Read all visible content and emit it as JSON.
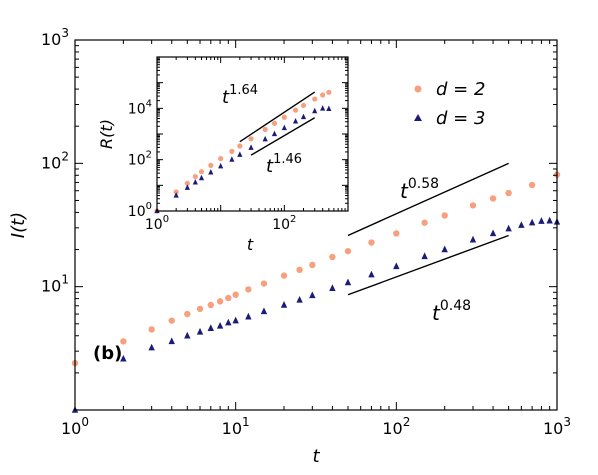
{
  "chart_data": [
    {
      "type": "scatter",
      "panel_label": "(b)",
      "xlabel": "t",
      "ylabel": "I(t)",
      "xscale": "log",
      "yscale": "log",
      "xlim": [
        1,
        1000
      ],
      "ylim": [
        1,
        1000
      ],
      "x_ticks": [
        {
          "base": "10",
          "exp": "0",
          "value": 1
        },
        {
          "base": "10",
          "exp": "1",
          "value": 10
        },
        {
          "base": "10",
          "exp": "2",
          "value": 100
        },
        {
          "base": "10",
          "exp": "3",
          "value": 1000
        }
      ],
      "y_ticks": [
        {
          "base": "10",
          "exp": "1",
          "value": 10
        },
        {
          "base": "10",
          "exp": "2",
          "value": 100
        },
        {
          "base": "10",
          "exp": "3",
          "value": 1000
        }
      ],
      "legend": {
        "placement": "upper-right"
      },
      "series": [
        {
          "name": "d = 2",
          "color": "#f7a07f",
          "marker": "circle",
          "points": [
            [
              1,
              2.4
            ],
            [
              2,
              3.6
            ],
            [
              3,
              4.5
            ],
            [
              4,
              5.3
            ],
            [
              5,
              6.0
            ],
            [
              6,
              6.6
            ],
            [
              7,
              7.1
            ],
            [
              8,
              7.6
            ],
            [
              9,
              8.1
            ],
            [
              10,
              8.6
            ],
            [
              12,
              9.5
            ],
            [
              15,
              10.6
            ],
            [
              20,
              12.3
            ],
            [
              25,
              13.7
            ],
            [
              30,
              15.0
            ],
            [
              40,
              17.4
            ],
            [
              50,
              19.4
            ],
            [
              70,
              22.8
            ],
            [
              100,
              27.0
            ],
            [
              150,
              33.0
            ],
            [
              200,
              37.8
            ],
            [
              300,
              45.6
            ],
            [
              400,
              51.9
            ],
            [
              500,
              57.4
            ],
            [
              700,
              66.7
            ],
            [
              1000,
              81.0
            ]
          ]
        },
        {
          "name": "d = 3",
          "color": "#1c1c78",
          "marker": "triangle",
          "points": [
            [
              1,
              1.0
            ],
            [
              2,
              2.6
            ],
            [
              3,
              3.2
            ],
            [
              4,
              3.6
            ],
            [
              5,
              4.0
            ],
            [
              6,
              4.3
            ],
            [
              7,
              4.6
            ],
            [
              8,
              4.8
            ],
            [
              9,
              5.1
            ],
            [
              10,
              5.3
            ],
            [
              12,
              5.7
            ],
            [
              15,
              6.3
            ],
            [
              20,
              7.1
            ],
            [
              25,
              7.8
            ],
            [
              30,
              8.5
            ],
            [
              40,
              9.7
            ],
            [
              50,
              10.8
            ],
            [
              70,
              12.5
            ],
            [
              100,
              14.6
            ],
            [
              150,
              17.6
            ],
            [
              200,
              20.0
            ],
            [
              300,
              24.0
            ],
            [
              400,
              27.0
            ],
            [
              500,
              29.5
            ],
            [
              600,
              31.5
            ],
            [
              700,
              33.0
            ],
            [
              800,
              34.0
            ],
            [
              900,
              34.2
            ],
            [
              1000,
              33.5
            ]
          ]
        }
      ],
      "guide_lines": [
        {
          "label_base": "t",
          "label_exp": "0.58",
          "x": [
            50,
            500
          ],
          "y": [
            26,
            100
          ]
        },
        {
          "label_base": "t",
          "label_exp": "0.48",
          "x": [
            50,
            500
          ],
          "y": [
            8.6,
            26
          ]
        }
      ]
    },
    {
      "type": "scatter",
      "role": "inset",
      "xlabel": "t",
      "ylabel": "R(t)",
      "xscale": "log",
      "yscale": "log",
      "xlim": [
        1,
        1000
      ],
      "ylim": [
        1,
        1000000
      ],
      "x_ticks": [
        {
          "base": "10",
          "exp": "0",
          "value": 1
        },
        {
          "base": "10",
          "exp": "2",
          "value": 100
        }
      ],
      "y_ticks": [
        {
          "base": "10",
          "exp": "0",
          "value": 1
        },
        {
          "base": "10",
          "exp": "2",
          "value": 100
        },
        {
          "base": "10",
          "exp": "4",
          "value": 10000
        }
      ],
      "series": [
        {
          "name": "d = 2",
          "color": "#f7a07f",
          "marker": "circle",
          "points": [
            [
              1,
              1.0
            ],
            [
              2,
              5.5
            ],
            [
              3,
              12
            ],
            [
              4,
              22
            ],
            [
              5,
              34
            ],
            [
              7,
              60
            ],
            [
              10,
              110
            ],
            [
              15,
              210
            ],
            [
              20,
              340
            ],
            [
              30,
              650
            ],
            [
              50,
              1500
            ],
            [
              70,
              2600
            ],
            [
              100,
              4500
            ],
            [
              150,
              8500
            ],
            [
              200,
              13000
            ],
            [
              300,
              23000
            ],
            [
              400,
              33000
            ],
            [
              500,
              42000
            ]
          ]
        },
        {
          "name": "d = 3",
          "color": "#1c1c78",
          "marker": "triangle",
          "points": [
            [
              1,
              1.0
            ],
            [
              2,
              4.0
            ],
            [
              3,
              8
            ],
            [
              4,
              13
            ],
            [
              5,
              19
            ],
            [
              7,
              32
            ],
            [
              10,
              55
            ],
            [
              15,
              100
            ],
            [
              20,
              155
            ],
            [
              30,
              290
            ],
            [
              50,
              620
            ],
            [
              70,
              1000
            ],
            [
              100,
              1700
            ],
            [
              150,
              3100
            ],
            [
              200,
              4600
            ],
            [
              300,
              7800
            ],
            [
              400,
              9800
            ],
            [
              500,
              9500
            ]
          ]
        }
      ],
      "guide_lines": [
        {
          "label_base": "t",
          "label_exp": "1.64",
          "x": [
            20,
            300
          ],
          "y": [
            500,
            43000
          ]
        },
        {
          "label_base": "t",
          "label_exp": "1.46",
          "x": [
            30,
            300
          ],
          "y": [
            150,
            4300
          ]
        }
      ]
    }
  ]
}
